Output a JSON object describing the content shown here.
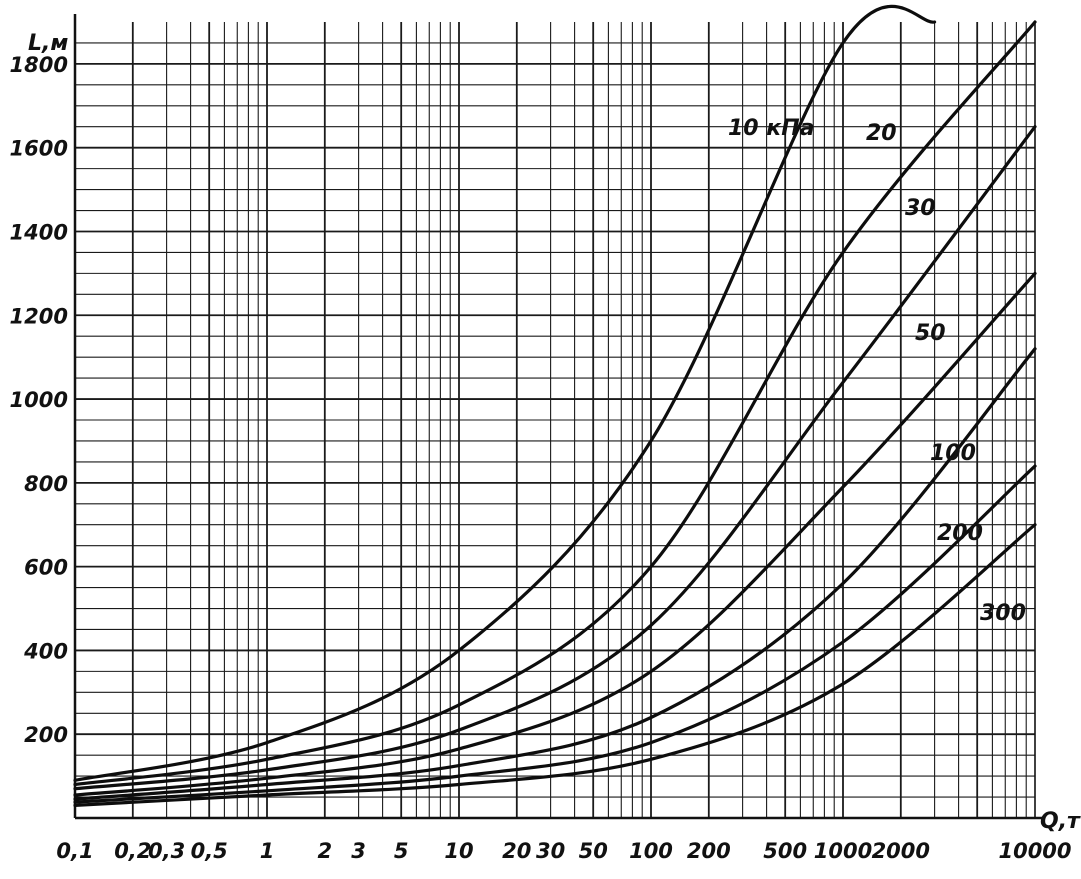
{
  "chart_data": {
    "type": "line",
    "title": "",
    "xlabel": "Q,т",
    "ylabel": "L,м",
    "x_scale": "log",
    "xlim": [
      0.1,
      10000
    ],
    "ylim": [
      0,
      1900
    ],
    "grid": true,
    "x_ticks": [
      0.1,
      0.2,
      0.3,
      0.5,
      1,
      2,
      3,
      5,
      10,
      20,
      30,
      50,
      100,
      200,
      500,
      1000,
      2000,
      10000
    ],
    "x_tick_labels": [
      "0,1",
      "0,2",
      "0,3",
      "0,5",
      "1",
      "2",
      "3",
      "5",
      "10",
      "20",
      "30",
      "50",
      "100",
      "200",
      "500",
      "1000",
      "2000",
      "10000"
    ],
    "y_ticks": [
      200,
      400,
      600,
      800,
      1000,
      1200,
      1400,
      1600,
      1800
    ],
    "y_tick_labels": [
      "200",
      "400",
      "600",
      "800",
      "1000",
      "1200",
      "1400",
      "1600",
      "1800"
    ],
    "series": [
      {
        "name": "10 кПа",
        "x": [
          0.1,
          1,
          10,
          100,
          1000,
          3000
        ],
        "y": [
          90,
          180,
          400,
          900,
          1850,
          1900
        ]
      },
      {
        "name": "20",
        "x": [
          0.1,
          1,
          10,
          100,
          1000,
          10000
        ],
        "y": [
          80,
          140,
          270,
          600,
          1350,
          1900
        ]
      },
      {
        "name": "30",
        "x": [
          0.1,
          1,
          10,
          100,
          1000,
          10000
        ],
        "y": [
          70,
          115,
          210,
          460,
          1040,
          1650
        ]
      },
      {
        "name": "50",
        "x": [
          0.1,
          1,
          10,
          100,
          1000,
          10000
        ],
        "y": [
          55,
          95,
          165,
          350,
          790,
          1300
        ]
      },
      {
        "name": "100",
        "x": [
          0.1,
          1,
          10,
          100,
          1000,
          10000
        ],
        "y": [
          45,
          80,
          125,
          240,
          560,
          1120
        ]
      },
      {
        "name": "200",
        "x": [
          0.1,
          1,
          10,
          100,
          1000,
          10000
        ],
        "y": [
          38,
          65,
          100,
          180,
          420,
          840
        ]
      },
      {
        "name": "300",
        "x": [
          0.1,
          1,
          10,
          100,
          1000,
          10000
        ],
        "y": [
          30,
          55,
          80,
          140,
          320,
          700
        ]
      }
    ]
  }
}
